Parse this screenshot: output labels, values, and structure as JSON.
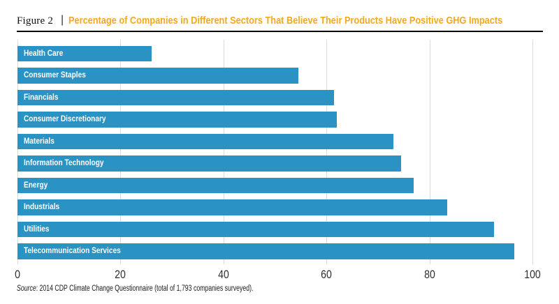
{
  "header": {
    "figure_label": "Figure 2",
    "separator": "|",
    "title": "Percentage of Companies in Different Sectors That Believe Their Products Have Positive GHG Impacts"
  },
  "chart_data": {
    "type": "bar",
    "orientation": "horizontal",
    "categories": [
      "Health Care",
      "Consumer Staples",
      "Financials",
      "Consumer Discretionary",
      "Materials",
      "Information Technology",
      "Energy",
      "Industrials",
      "Utilities",
      "Telecommunication Services"
    ],
    "values": [
      26,
      54.5,
      61.5,
      62,
      73,
      74.5,
      77,
      83.5,
      92.5,
      96.5
    ],
    "xlim": [
      0,
      100
    ],
    "x_ticks": [
      0,
      20,
      40,
      60,
      80,
      100
    ],
    "grid": true,
    "legend": false,
    "label_position": "inside-left"
  },
  "source_note": {
    "prefix": "Source",
    "text": ": 2014 CDP Climate Change Questionnaire (total of 1,793 companies surveyed)."
  },
  "colors": {
    "title": "#F5A81B",
    "bar": "#2B92C4",
    "grid": "#DBDBDB",
    "rule": "#000000"
  }
}
